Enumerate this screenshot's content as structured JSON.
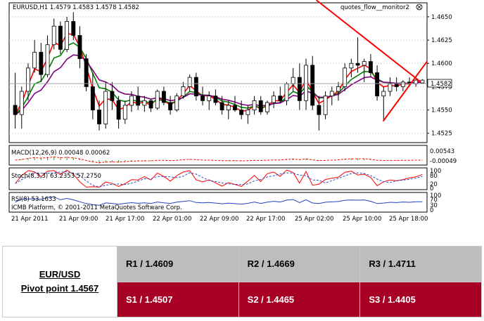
{
  "chart": {
    "header": "EURUSD,H1  1.4579 1.4583 1.4578 1.4582",
    "indicator_name": "quotes_flow__monitor2",
    "price_ticks": [
      "1.4650",
      "1.4625",
      "1.4600",
      "1.4575",
      "1.4550",
      "1.4525"
    ],
    "current_price": "1.4582",
    "macd_label": "MACD(12,26,9) 0.00048 0.00062",
    "macd_ticks": [
      "0.00543",
      "-0.00049"
    ],
    "stoch_label": "Stoch(8,3,3) 63.2353 57.2750",
    "stoch_ticks": [
      "100",
      "80",
      "20",
      "0"
    ],
    "rsi_label": "RSI(8) 53.1633",
    "rsi_ticks": [
      "100",
      "70",
      "30",
      "0"
    ],
    "copyright": "ICMB Platform, © 2001-2011 MetaQuotes Software Corp.",
    "time_ticks": [
      "21 Apr 2011",
      "21 Apr 09:00",
      "21 Apr 17:00",
      "22 Apr 01:00",
      "22 Apr 09:00",
      "22 Apr 17:00",
      "25 Apr 02:00",
      "25 Apr 10:00",
      "25 Apr 18:00"
    ],
    "colors": {
      "bull": "#ffffff",
      "bear": "#000000",
      "ma_fast": "#ff0000",
      "ma_mid": "#008000",
      "ma_slow": "#800080",
      "trendline": "#ff0000"
    }
  },
  "pivot_table": {
    "instrument": "EUR/USD",
    "pivot": "Pivot point 1.4567",
    "resistance": [
      "R1 / 1.4609",
      "R2 / 1.4669",
      "R3 / 1.4711"
    ],
    "support": [
      "S1 / 1.4507",
      "S2 / 1.4465",
      "S3 / 1.4405"
    ]
  },
  "chart_data": {
    "type": "candlestick",
    "title": "EURUSD,H1  1.4579 1.4583 1.4578 1.4582",
    "ylim": [
      1.4515,
      1.4665
    ],
    "candles": [
      [
        1.4555,
        1.459,
        1.453,
        1.4545
      ],
      [
        1.4545,
        1.4575,
        1.453,
        1.457
      ],
      [
        1.457,
        1.46,
        1.456,
        1.4595
      ],
      [
        1.4595,
        1.4625,
        1.459,
        1.4612
      ],
      [
        1.4612,
        1.4622,
        1.458,
        1.4588
      ],
      [
        1.4588,
        1.463,
        1.4585,
        1.462
      ],
      [
        1.462,
        1.4648,
        1.4615,
        1.464
      ],
      [
        1.464,
        1.4645,
        1.461,
        1.4615
      ],
      [
        1.4615,
        1.465,
        1.4612,
        1.4645
      ],
      [
        1.4645,
        1.4655,
        1.4625,
        1.463
      ],
      [
        1.463,
        1.464,
        1.4595,
        1.4605
      ],
      [
        1.4605,
        1.461,
        1.457,
        1.4575
      ],
      [
        1.4575,
        1.459,
        1.454,
        1.455
      ],
      [
        1.455,
        1.456,
        1.4528,
        1.4535
      ],
      [
        1.4535,
        1.458,
        1.453,
        1.457
      ],
      [
        1.457,
        1.458,
        1.455,
        1.456
      ],
      [
        1.456,
        1.4565,
        1.453,
        1.454
      ],
      [
        1.454,
        1.456,
        1.4535,
        1.4555
      ],
      [
        1.4555,
        1.457,
        1.4548,
        1.4565
      ],
      [
        1.4565,
        1.4575,
        1.455,
        1.4555
      ],
      [
        1.4555,
        1.4565,
        1.4548,
        1.456
      ],
      [
        1.456,
        1.4562,
        1.4548,
        1.4552
      ],
      [
        1.4552,
        1.4572,
        1.455,
        1.457
      ],
      [
        1.457,
        1.4575,
        1.4555,
        1.4558
      ],
      [
        1.4558,
        1.4565,
        1.4545,
        1.455
      ],
      [
        1.455,
        1.4568,
        1.4548,
        1.4565
      ],
      [
        1.4565,
        1.458,
        1.4562,
        1.4575
      ],
      [
        1.4575,
        1.4588,
        1.457,
        1.4585
      ],
      [
        1.4585,
        1.459,
        1.456,
        1.4565
      ],
      [
        1.4565,
        1.4575,
        1.4555,
        1.456
      ],
      [
        1.456,
        1.457,
        1.455,
        1.4565
      ],
      [
        1.4565,
        1.4572,
        1.4555,
        1.4558
      ],
      [
        1.4558,
        1.4565,
        1.4545,
        1.455
      ],
      [
        1.455,
        1.456,
        1.454,
        1.4555
      ],
      [
        1.4555,
        1.4565,
        1.4548,
        1.455
      ],
      [
        1.455,
        1.456,
        1.454,
        1.4545
      ],
      [
        1.4545,
        1.4555,
        1.4535,
        1.455
      ],
      [
        1.455,
        1.4565,
        1.4545,
        1.456
      ],
      [
        1.456,
        1.4565,
        1.4545,
        1.4548
      ],
      [
        1.4548,
        1.456,
        1.4545,
        1.4558
      ],
      [
        1.4558,
        1.457,
        1.4552,
        1.4565
      ],
      [
        1.4565,
        1.4575,
        1.4558,
        1.456
      ],
      [
        1.456,
        1.458,
        1.4555,
        1.4578
      ],
      [
        1.4578,
        1.4595,
        1.457,
        1.4585
      ],
      [
        1.4585,
        1.46,
        1.455,
        1.456
      ],
      [
        1.456,
        1.4605,
        1.455,
        1.4598
      ],
      [
        1.4598,
        1.4608,
        1.455,
        1.4555
      ],
      [
        1.4555,
        1.4565,
        1.4528,
        1.4545
      ],
      [
        1.4545,
        1.457,
        1.454,
        1.4565
      ],
      [
        1.4565,
        1.4575,
        1.4555,
        1.457
      ],
      [
        1.457,
        1.458,
        1.456,
        1.4575
      ],
      [
        1.4575,
        1.46,
        1.457,
        1.4595
      ],
      [
        1.4595,
        1.4605,
        1.4585,
        1.46
      ],
      [
        1.46,
        1.4628,
        1.459,
        1.4598
      ],
      [
        1.4598,
        1.4605,
        1.458,
        1.4602
      ],
      [
        1.4602,
        1.461,
        1.4585,
        1.459
      ],
      [
        1.459,
        1.4598,
        1.456,
        1.4565
      ],
      [
        1.4565,
        1.4575,
        1.454,
        1.457
      ],
      [
        1.457,
        1.4585,
        1.4565,
        1.4578
      ],
      [
        1.4578,
        1.4585,
        1.457,
        1.4575
      ],
      [
        1.4575,
        1.4582,
        1.457,
        1.458
      ],
      [
        1.458,
        1.4585,
        1.4575,
        1.4578
      ],
      [
        1.4578,
        1.4583,
        1.4575,
        1.4582
      ],
      [
        1.4579,
        1.4583,
        1.4578,
        1.4582
      ]
    ],
    "trendlines": [
      {
        "from": [
          0.735,
          1.4668
        ],
        "to": [
          0.985,
          1.458
        ]
      },
      {
        "from": [
          0.895,
          1.4538
        ],
        "to": [
          1.0,
          1.4602
        ]
      }
    ]
  }
}
